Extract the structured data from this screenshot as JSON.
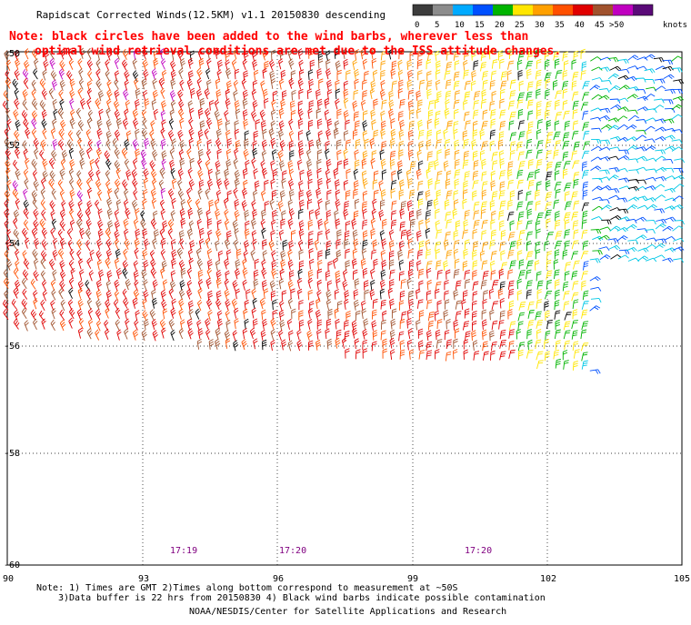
{
  "title": "Rapidscat Corrected Winds(12.5KM) v1.1 20150830 descending",
  "note": {
    "line1": "Note: black circles have been added to the wind barbs, wherever less than",
    "line2": "optimal wind retrieval conditions are met due to the ISS attitude changes."
  },
  "legend": {
    "unit_label": "knots",
    "ticks": [
      "0",
      "5",
      "10",
      "15",
      "20",
      "25",
      "30",
      "35",
      "40",
      "45",
      ">50"
    ],
    "colors": [
      "#3c3c3c",
      "#8c8c8c",
      "#00aaff",
      "#0050ff",
      "#00b400",
      "#ffe600",
      "#ffa000",
      "#ff5000",
      "#e00000",
      "#a0522d",
      "#c000c0",
      "#5a0a78"
    ]
  },
  "axes": {
    "y_labels": [
      "-50",
      "-52",
      "-54",
      "-56",
      "-58",
      "-60"
    ],
    "x_labels": [
      "90",
      "93",
      "96",
      "99",
      "102",
      "105"
    ]
  },
  "times": [
    "17:19",
    "17:20",
    "17:20"
  ],
  "footer": {
    "line1": "Note: 1) Times are GMT 2)Times along bottom correspond to measurement at ~50S",
    "line2": "3)Data buffer is 22 hrs from 20150830 4) Black wind barbs indicate possible contamination",
    "line3": "NOAA/NESDIS/Center for Satellite Applications and Research"
  }
}
